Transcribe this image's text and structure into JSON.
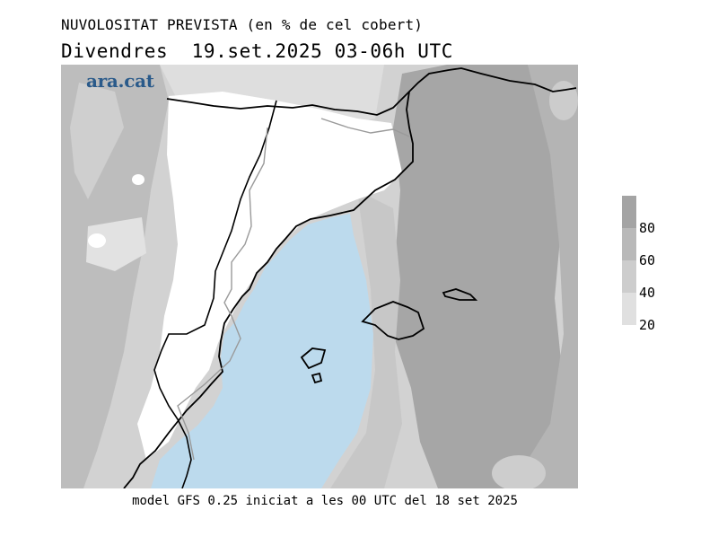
{
  "header": {
    "title": "NUVOLOSITAT PREVISTA (en % de cel cobert)",
    "subtitle": "Divendres  19.set.2025 03-06h UTC"
  },
  "brand": {
    "logo_text": "ara.cat",
    "color": "#2a5a8a"
  },
  "footer": {
    "model_note": "model GFS 0.25 iniciat a les 00 UTC del 18 set 2025"
  },
  "legend": {
    "labels": [
      "80",
      "60",
      "40",
      "20"
    ],
    "colors": [
      "#a4a4a4",
      "#b9b9b9",
      "#cdcdcd",
      "#e0e0e0"
    ]
  },
  "colors": {
    "sea_clear": "#bcdaed",
    "land_clear": "#ffffff",
    "coast": "#000000",
    "border": "#9a9a9a"
  }
}
